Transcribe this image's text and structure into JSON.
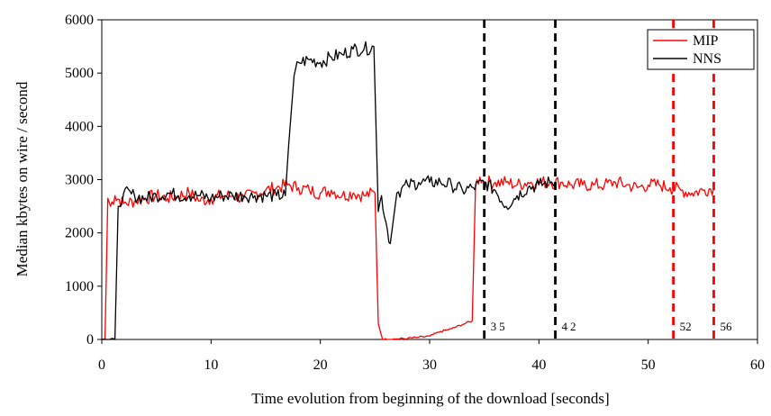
{
  "chart_data": {
    "type": "line",
    "title": "",
    "xlabel": "Time evolution from beginning of the download [seconds]",
    "ylabel": "Median kbytes on wire / second",
    "xlim": [
      0,
      60
    ],
    "ylim": [
      0,
      6000
    ],
    "xticks": [
      "0",
      "10",
      "20",
      "30",
      "40",
      "50",
      "60"
    ],
    "yticks": [
      "0",
      "1000",
      "2000",
      "3000",
      "4000",
      "5000",
      "6000"
    ],
    "grid": false,
    "legend_position": "top-right",
    "colors": {
      "MIP": "#ff0000",
      "NNS": "#000000"
    },
    "series": [
      {
        "name": "MIP",
        "color": "#ff0000",
        "points": [
          [
            0,
            0
          ],
          [
            0.3,
            0
          ],
          [
            0.55,
            2650
          ],
          [
            0.8,
            2500
          ],
          [
            1.2,
            2700
          ],
          [
            2,
            2550
          ],
          [
            3,
            2600
          ],
          [
            4,
            2650
          ],
          [
            5,
            2700
          ],
          [
            6,
            2650
          ],
          [
            7,
            2700
          ],
          [
            8,
            2750
          ],
          [
            9,
            2600
          ],
          [
            10,
            2650
          ],
          [
            11,
            2700
          ],
          [
            12,
            2700
          ],
          [
            13,
            2650
          ],
          [
            14,
            2750
          ],
          [
            15,
            2800
          ],
          [
            16,
            2850
          ],
          [
            17,
            2900
          ],
          [
            18,
            2850
          ],
          [
            19,
            2800
          ],
          [
            20,
            2750
          ],
          [
            21,
            2800
          ],
          [
            22,
            2700
          ],
          [
            23,
            2750
          ],
          [
            24,
            2700
          ],
          [
            25,
            2750
          ],
          [
            25.3,
            300
          ],
          [
            25.7,
            0
          ],
          [
            27,
            10
          ],
          [
            28,
            20
          ],
          [
            29,
            40
          ],
          [
            30,
            60
          ],
          [
            31,
            150
          ],
          [
            32,
            200
          ],
          [
            33,
            280
          ],
          [
            33.9,
            350
          ],
          [
            34.2,
            2900
          ],
          [
            34.6,
            3050
          ],
          [
            35,
            2950
          ],
          [
            36,
            2950
          ],
          [
            37,
            2950
          ],
          [
            38,
            2900
          ],
          [
            39,
            2950
          ],
          [
            40,
            2950
          ],
          [
            41,
            2950
          ],
          [
            42,
            2950
          ],
          [
            43,
            2900
          ],
          [
            44,
            2900
          ],
          [
            45,
            2900
          ],
          [
            46,
            2900
          ],
          [
            47,
            2950
          ],
          [
            48,
            2900
          ],
          [
            49,
            2850
          ],
          [
            50,
            2900
          ],
          [
            51,
            2900
          ],
          [
            52,
            2850
          ],
          [
            53,
            2800
          ],
          [
            54,
            2750
          ],
          [
            55,
            2800
          ],
          [
            56,
            2850
          ]
        ]
      },
      {
        "name": "NNS",
        "color": "#000000",
        "points": [
          [
            0,
            0
          ],
          [
            1.2,
            0
          ],
          [
            1.5,
            2500
          ],
          [
            2,
            2750
          ],
          [
            3,
            2700
          ],
          [
            4,
            2650
          ],
          [
            5,
            2700
          ],
          [
            6,
            2750
          ],
          [
            7,
            2700
          ],
          [
            8,
            2700
          ],
          [
            9,
            2700
          ],
          [
            10,
            2650
          ],
          [
            11,
            2700
          ],
          [
            12,
            2700
          ],
          [
            13,
            2700
          ],
          [
            14,
            2700
          ],
          [
            15,
            2700
          ],
          [
            16,
            2700
          ],
          [
            16.8,
            2700
          ],
          [
            17.1,
            3650
          ],
          [
            17.6,
            4950
          ],
          [
            18,
            5200
          ],
          [
            19,
            5250
          ],
          [
            20,
            5200
          ],
          [
            21,
            5300
          ],
          [
            22,
            5350
          ],
          [
            23,
            5450
          ],
          [
            24,
            5450
          ],
          [
            24.9,
            5500
          ],
          [
            25.3,
            2400
          ],
          [
            25.6,
            2700
          ],
          [
            26,
            2200
          ],
          [
            26.4,
            1800
          ],
          [
            27,
            2750
          ],
          [
            28,
            2900
          ],
          [
            29,
            2950
          ],
          [
            30,
            2950
          ],
          [
            31,
            2950
          ],
          [
            32,
            2900
          ],
          [
            33,
            2800
          ],
          [
            34,
            2850
          ],
          [
            35,
            2950
          ],
          [
            36,
            2800
          ],
          [
            37,
            2500
          ],
          [
            38,
            2700
          ],
          [
            39,
            2850
          ],
          [
            40,
            2900
          ],
          [
            41,
            2950
          ],
          [
            41.5,
            2950
          ]
        ]
      }
    ],
    "vertical_markers": [
      {
        "x": 35,
        "label": "35",
        "color": "#000000",
        "label_spaced": true
      },
      {
        "x": 41.5,
        "label": "42",
        "color": "#000000",
        "label_spaced": true
      },
      {
        "x": 52.3,
        "label": "52",
        "color": "#ff0000",
        "label_spaced": false
      },
      {
        "x": 56,
        "label": "56",
        "color": "#ff0000",
        "label_spaced": false
      }
    ]
  }
}
